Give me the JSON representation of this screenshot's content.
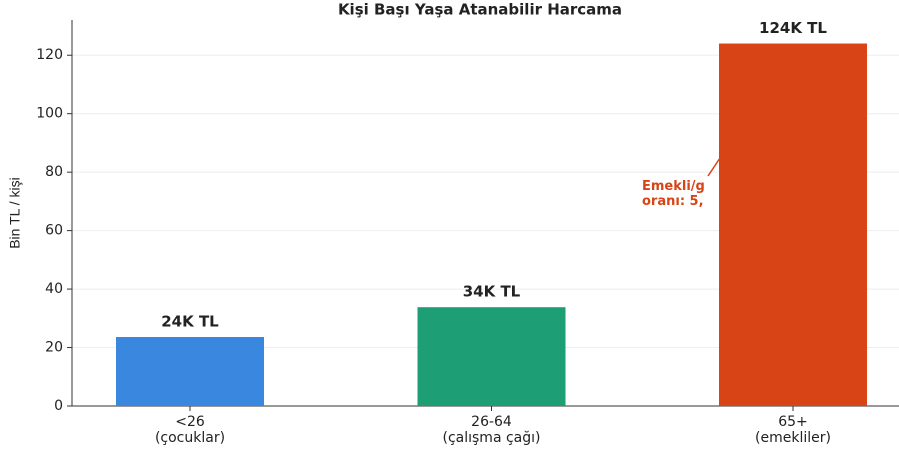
{
  "chart_data": {
    "type": "bar",
    "title": "Kişi Başı Yaşa Atanabilir Harcama",
    "ylabel": "Bin TL / kişi",
    "categories": [
      "<26\n(çocuklar)",
      "26-64\n(çalışma çağı)",
      "65+\n(emekliler)"
    ],
    "values": [
      23.6,
      33.8,
      124
    ],
    "value_labels": [
      "24K TL",
      "34K TL",
      "124K TL"
    ],
    "colors": [
      "#3a87e0",
      "#1e9e74",
      "#d84416"
    ],
    "annotation": "Emekli/g\noranı: 5,",
    "ylim": [
      0,
      130
    ],
    "yticks": [
      0,
      20,
      40,
      60,
      80,
      100,
      120
    ],
    "grid": true
  }
}
